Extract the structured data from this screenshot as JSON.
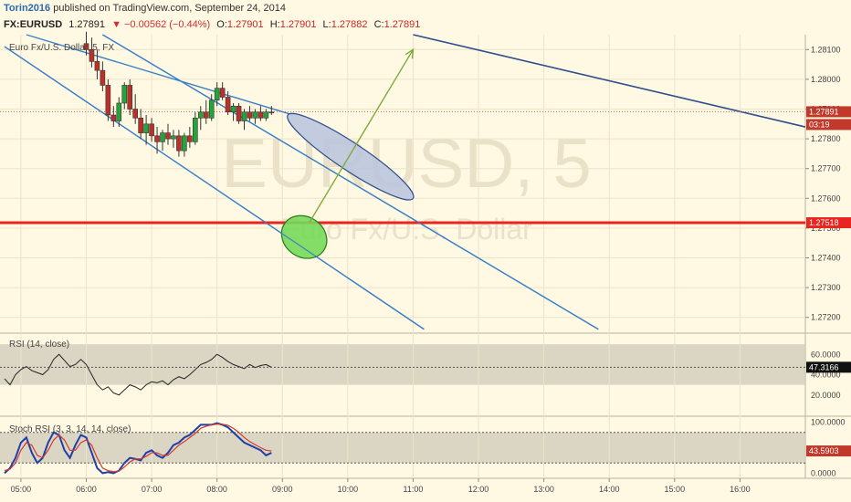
{
  "header": {
    "author": "Torin2016",
    "published_text": "published on TradingView.com, September 24, 2014"
  },
  "info": {
    "symbol": "FX:EURUSD",
    "last": "1.27891",
    "change": "▼ −0.00562 (−0.44%)",
    "o_label": "O:",
    "o": "1.27901",
    "h_label": "H:",
    "h": "1.27901",
    "l_label": "L:",
    "l": "1.27882",
    "c_label": "C:",
    "c": "1.27891"
  },
  "panes": {
    "main_title": "Euro Fx/U.S. Dollar, 5, FX",
    "watermark_symbol": "EURUSD, 5",
    "watermark_name": "Euro Fx/U.S. Dollar",
    "rsi_title": "RSI (14, close)",
    "stoch_title": "Stoch RSI (3, 3, 14, 14, close)"
  },
  "price_axis": {
    "ticks": [
      "1.28100",
      "1.28000",
      "1.27900",
      "1.27800",
      "1.27700",
      "1.27600",
      "1.27500",
      "1.27400",
      "1.27300",
      "1.27200"
    ],
    "last_price_tag": "1.27891",
    "countdown": "03:19",
    "hline_tag": "1.27518"
  },
  "rsi_axis": {
    "ticks": [
      "60.0000",
      "40.0000",
      "20.0000"
    ],
    "value_tag": "47.3166"
  },
  "stoch_axis": {
    "ticks": [
      "100.0000",
      "0.0000"
    ],
    "value_tag": "43.5903"
  },
  "time_axis": {
    "ticks": [
      "05:00",
      "06:00",
      "07:00",
      "08:00",
      "09:00",
      "10:00",
      "11:00",
      "12:00",
      "13:00",
      "14:00",
      "15:00",
      "16:00"
    ]
  },
  "colors": {
    "background": "#fff8e2",
    "up": "#26a33b",
    "down": "#b8322a",
    "channel": "#3a7fc8",
    "hline": "#e8251e",
    "trend": "#2c4d8c",
    "arrow": "#7dab3a",
    "ellipse_blue": "#b8c4de",
    "ellipse_green": "#76d95a"
  },
  "chart_data": [
    {
      "type": "candlestick",
      "title": "Euro Fx/U.S. Dollar, 5, FX",
      "ylim": [
        1.2715,
        1.2815
      ],
      "x_range": [
        "04:45",
        "17:00"
      ],
      "candles": [
        {
          "t": "06:00",
          "o": 1.2812,
          "h": 1.2816,
          "l": 1.2808,
          "c": 1.281
        },
        {
          "t": "06:05",
          "o": 1.281,
          "h": 1.2814,
          "l": 1.2804,
          "c": 1.2806
        },
        {
          "t": "06:10",
          "o": 1.2806,
          "h": 1.281,
          "l": 1.28,
          "c": 1.2803
        },
        {
          "t": "06:15",
          "o": 1.2803,
          "h": 1.2806,
          "l": 1.2796,
          "c": 1.2798
        },
        {
          "t": "06:20",
          "o": 1.2798,
          "h": 1.28,
          "l": 1.2786,
          "c": 1.2788
        },
        {
          "t": "06:25",
          "o": 1.2788,
          "h": 1.2791,
          "l": 1.2784,
          "c": 1.2786
        },
        {
          "t": "06:30",
          "o": 1.2786,
          "h": 1.2794,
          "l": 1.2784,
          "c": 1.2792
        },
        {
          "t": "06:35",
          "o": 1.2792,
          "h": 1.2799,
          "l": 1.279,
          "c": 1.2798
        },
        {
          "t": "06:40",
          "o": 1.2798,
          "h": 1.28,
          "l": 1.2788,
          "c": 1.279
        },
        {
          "t": "06:45",
          "o": 1.279,
          "h": 1.2795,
          "l": 1.2785,
          "c": 1.2787
        },
        {
          "t": "06:50",
          "o": 1.2787,
          "h": 1.279,
          "l": 1.278,
          "c": 1.2782
        },
        {
          "t": "06:55",
          "o": 1.2782,
          "h": 1.2788,
          "l": 1.2778,
          "c": 1.2785
        },
        {
          "t": "07:00",
          "o": 1.2785,
          "h": 1.2787,
          "l": 1.2779,
          "c": 1.2781
        },
        {
          "t": "07:05",
          "o": 1.2781,
          "h": 1.2784,
          "l": 1.2775,
          "c": 1.2779
        },
        {
          "t": "07:10",
          "o": 1.2779,
          "h": 1.2783,
          "l": 1.2776,
          "c": 1.2782
        },
        {
          "t": "07:15",
          "o": 1.2782,
          "h": 1.2785,
          "l": 1.2778,
          "c": 1.278
        },
        {
          "t": "07:20",
          "o": 1.278,
          "h": 1.2783,
          "l": 1.2777,
          "c": 1.2781
        },
        {
          "t": "07:25",
          "o": 1.2781,
          "h": 1.2783,
          "l": 1.2774,
          "c": 1.2776
        },
        {
          "t": "07:30",
          "o": 1.2776,
          "h": 1.2782,
          "l": 1.2774,
          "c": 1.2781
        },
        {
          "t": "07:35",
          "o": 1.2781,
          "h": 1.2784,
          "l": 1.2777,
          "c": 1.2779
        },
        {
          "t": "07:40",
          "o": 1.2779,
          "h": 1.2789,
          "l": 1.2778,
          "c": 1.2787
        },
        {
          "t": "07:45",
          "o": 1.2787,
          "h": 1.2791,
          "l": 1.2783,
          "c": 1.2789
        },
        {
          "t": "07:50",
          "o": 1.2789,
          "h": 1.2793,
          "l": 1.2785,
          "c": 1.2787
        },
        {
          "t": "07:55",
          "o": 1.2787,
          "h": 1.2795,
          "l": 1.2786,
          "c": 1.2793
        },
        {
          "t": "08:00",
          "o": 1.2793,
          "h": 1.2799,
          "l": 1.2791,
          "c": 1.2797
        },
        {
          "t": "08:05",
          "o": 1.2797,
          "h": 1.2799,
          "l": 1.2793,
          "c": 1.2794
        },
        {
          "t": "08:10",
          "o": 1.2794,
          "h": 1.2796,
          "l": 1.2788,
          "c": 1.2789
        },
        {
          "t": "08:15",
          "o": 1.2789,
          "h": 1.2792,
          "l": 1.2786,
          "c": 1.2791
        },
        {
          "t": "08:20",
          "o": 1.2791,
          "h": 1.2792,
          "l": 1.2785,
          "c": 1.2786
        },
        {
          "t": "08:25",
          "o": 1.2786,
          "h": 1.279,
          "l": 1.2783,
          "c": 1.2789
        },
        {
          "t": "08:30",
          "o": 1.2789,
          "h": 1.2791,
          "l": 1.2786,
          "c": 1.2787
        },
        {
          "t": "08:35",
          "o": 1.2787,
          "h": 1.279,
          "l": 1.2785,
          "c": 1.2789
        },
        {
          "t": "08:40",
          "o": 1.2789,
          "h": 1.2791,
          "l": 1.2786,
          "c": 1.2787
        },
        {
          "t": "08:45",
          "o": 1.2787,
          "h": 1.279,
          "l": 1.2786,
          "c": 1.2789
        },
        {
          "t": "08:50",
          "o": 1.2789,
          "h": 1.2791,
          "l": 1.2788,
          "c": 1.2789
        }
      ],
      "last_price": 1.27891,
      "horizontal_line": 1.27518,
      "channel_lines": [
        [
          {
            "t": "05:05",
            "p": 1.2815
          },
          {
            "t": "09:10",
            "p": 1.2788
          }
        ],
        [
          {
            "t": "06:15",
            "p": 1.2815
          },
          {
            "t": "13:50",
            "p": 1.2716
          }
        ],
        [
          {
            "t": "04:45",
            "p": 1.2811
          },
          {
            "t": "11:10",
            "p": 1.2716
          }
        ]
      ],
      "trend_line": [
        {
          "t": "11:00",
          "p": 1.2815
        },
        {
          "t": "17:00",
          "p": 1.2784
        }
      ],
      "arrow": [
        {
          "t": "09:25",
          "p": 1.2752
        },
        {
          "t": "11:00",
          "p": 1.281
        }
      ],
      "ellipses": [
        {
          "color": "blue",
          "from": {
            "t": "09:05",
            "p": 1.2788
          },
          "to": {
            "t": "11:00",
            "p": 1.276
          }
        },
        {
          "color": "green",
          "center": {
            "t": "09:20",
            "p": 1.2747
          }
        }
      ]
    },
    {
      "type": "line",
      "title": "RSI (14, close)",
      "ylim": [
        0,
        80
      ],
      "x": [
        "04:45",
        "04:50",
        "04:55",
        "05:00",
        "05:05",
        "05:10",
        "05:15",
        "05:20",
        "05:25",
        "05:30",
        "05:35",
        "05:40",
        "05:45",
        "05:50",
        "05:55",
        "06:00",
        "06:05",
        "06:10",
        "06:15",
        "06:20",
        "06:25",
        "06:30",
        "06:35",
        "06:40",
        "06:45",
        "06:50",
        "06:55",
        "07:00",
        "07:05",
        "07:10",
        "07:15",
        "07:20",
        "07:25",
        "07:30",
        "07:35",
        "07:40",
        "07:45",
        "07:50",
        "07:55",
        "08:00",
        "08:05",
        "08:10",
        "08:15",
        "08:20",
        "08:25",
        "08:30",
        "08:35",
        "08:40",
        "08:45",
        "08:50"
      ],
      "series": [
        {
          "values": [
            36,
            30,
            40,
            45,
            48,
            44,
            42,
            40,
            45,
            55,
            60,
            54,
            48,
            50,
            55,
            50,
            40,
            30,
            25,
            28,
            22,
            20,
            25,
            30,
            28,
            25,
            30,
            33,
            32,
            34,
            30,
            35,
            38,
            36,
            40,
            45,
            50,
            52,
            55,
            60,
            57,
            53,
            50,
            48,
            46,
            50,
            47,
            49,
            50,
            47.3
          ]
        }
      ],
      "reference_line": 47.3166
    },
    {
      "type": "line",
      "title": "Stoch RSI (3, 3, 14, 14, close)",
      "ylim": [
        -10,
        110
      ],
      "x": [
        "04:45",
        "04:50",
        "04:55",
        "05:00",
        "05:05",
        "05:10",
        "05:15",
        "05:20",
        "05:25",
        "05:30",
        "05:35",
        "05:40",
        "05:45",
        "05:50",
        "05:55",
        "06:00",
        "06:05",
        "06:10",
        "06:15",
        "06:20",
        "06:25",
        "06:30",
        "06:35",
        "06:40",
        "06:45",
        "06:50",
        "06:55",
        "07:00",
        "07:05",
        "07:10",
        "07:15",
        "07:20",
        "07:25",
        "07:30",
        "07:35",
        "07:40",
        "07:45",
        "07:50",
        "07:55",
        "08:00",
        "08:05",
        "08:10",
        "08:15",
        "08:20",
        "08:25",
        "08:30",
        "08:35",
        "08:40",
        "08:45",
        "08:50"
      ],
      "series": [
        {
          "color": "#1f3fa8",
          "values": [
            0,
            10,
            30,
            60,
            70,
            40,
            20,
            30,
            60,
            80,
            75,
            45,
            30,
            55,
            75,
            70,
            40,
            10,
            0,
            2,
            0,
            5,
            20,
            30,
            28,
            25,
            40,
            45,
            35,
            30,
            40,
            55,
            60,
            70,
            75,
            85,
            95,
            95,
            95,
            98,
            95,
            90,
            80,
            70,
            60,
            55,
            50,
            45,
            35,
            40
          ]
        },
        {
          "color": "#d43a2e",
          "values": [
            5,
            8,
            20,
            45,
            60,
            55,
            35,
            30,
            45,
            65,
            75,
            65,
            45,
            45,
            60,
            65,
            55,
            30,
            10,
            5,
            3,
            4,
            12,
            22,
            28,
            28,
            33,
            40,
            40,
            35,
            35,
            45,
            55,
            62,
            70,
            78,
            88,
            92,
            95,
            96,
            96,
            94,
            88,
            80,
            70,
            62,
            56,
            50,
            45,
            43.6
          ]
        }
      ],
      "reference_value": 43.5903
    }
  ]
}
